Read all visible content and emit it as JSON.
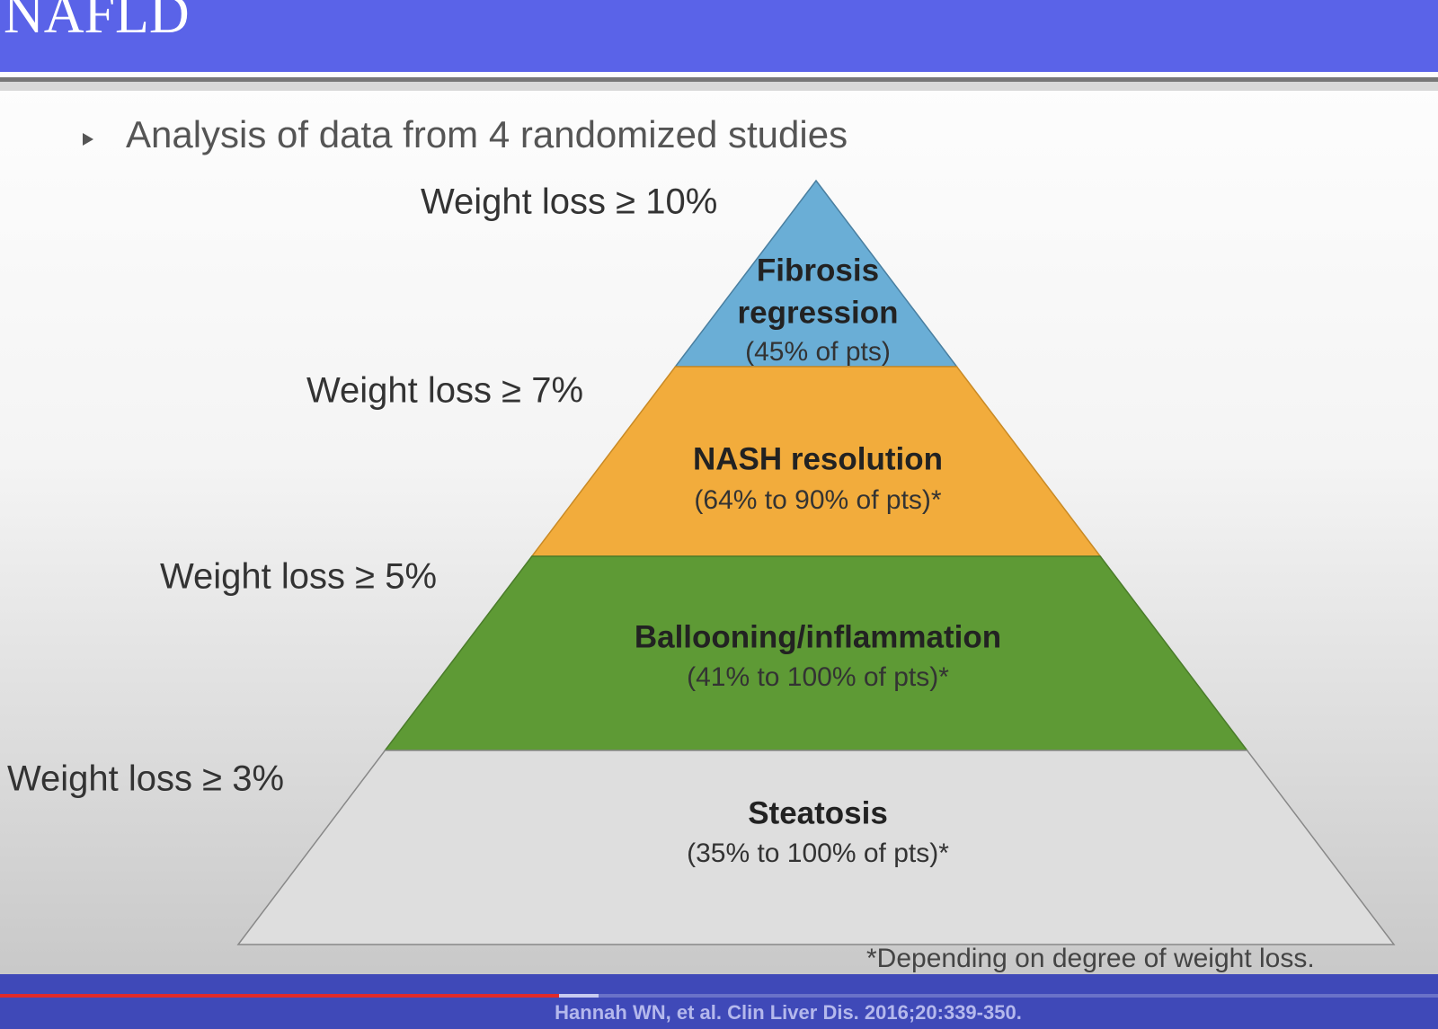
{
  "header": {
    "title": "NAFLD"
  },
  "bullet": "Analysis of data from 4 randomized studies",
  "levels": [
    {
      "threshold": "Weight loss ≥ 10%",
      "title": [
        "Fibrosis",
        "regression"
      ],
      "detail": "(45% of pts)"
    },
    {
      "threshold": "Weight loss ≥ 7%",
      "title": [
        "NASH resolution"
      ],
      "detail": "(64% to 90% of pts)*"
    },
    {
      "threshold": "Weight loss ≥ 5%",
      "title": [
        "Ballooning/inflammation"
      ],
      "detail": "(41% to 100% of pts)*"
    },
    {
      "threshold": "Weight loss ≥ 3%",
      "title": [
        "Steatosis"
      ],
      "detail": "(35% to 100% of pts)*"
    }
  ],
  "footnote": "*Depending on degree of weight loss.",
  "citation": "Hannah WN, et al. Clin Liver Dis. 2016;20:339-350."
}
